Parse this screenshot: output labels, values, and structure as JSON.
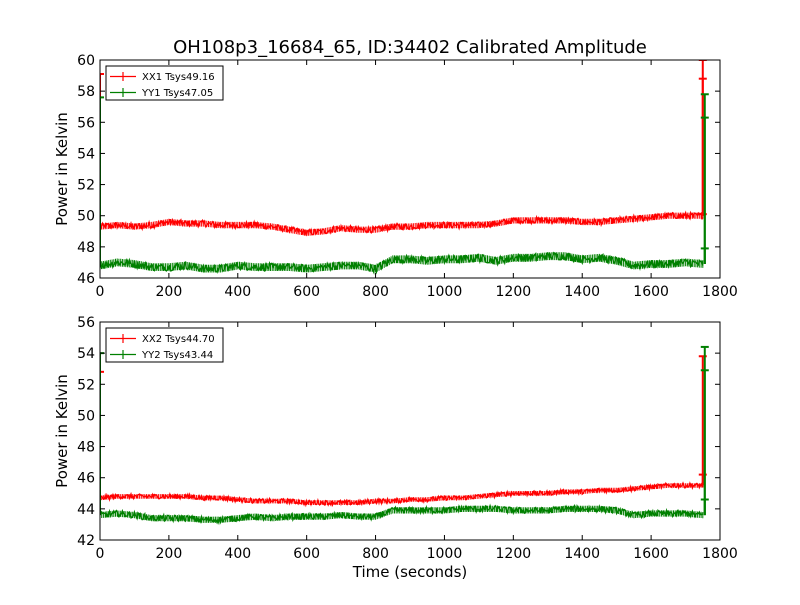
{
  "figure": {
    "title": "OH108p3_16684_65, ID:34402 Calibrated Amplitude",
    "xlabel": "Time (seconds)"
  },
  "colors": {
    "XX": "#ff0000",
    "YY": "#008000"
  },
  "chart_data": [
    {
      "type": "line",
      "title": "OH108p3_16684_65, ID:34402 Calibrated Amplitude",
      "xlabel": "",
      "ylabel": "Power in Kelvin",
      "xlim": [
        0,
        1800
      ],
      "ylim": [
        46,
        60
      ],
      "xticks": [
        0,
        200,
        400,
        600,
        800,
        1000,
        1200,
        1400,
        1600,
        1800
      ],
      "yticks": [
        46,
        48,
        50,
        52,
        54,
        56,
        58,
        60
      ],
      "grid": false,
      "legend_position": "top-left",
      "series": [
        {
          "name": "XX1 Tsys49.16",
          "color": "#ff0000",
          "x": [
            0,
            50,
            100,
            150,
            200,
            250,
            300,
            350,
            400,
            450,
            500,
            550,
            600,
            650,
            700,
            750,
            800,
            850,
            900,
            950,
            1000,
            1050,
            1100,
            1150,
            1200,
            1250,
            1300,
            1350,
            1400,
            1450,
            1500,
            1550,
            1600,
            1650,
            1700,
            1750
          ],
          "y": [
            49.3,
            49.4,
            49.3,
            49.4,
            49.6,
            49.5,
            49.5,
            49.4,
            49.4,
            49.4,
            49.3,
            49.1,
            48.9,
            49.0,
            49.2,
            49.1,
            49.1,
            49.3,
            49.3,
            49.4,
            49.4,
            49.4,
            49.4,
            49.5,
            49.7,
            49.7,
            49.7,
            49.7,
            49.6,
            49.6,
            49.7,
            49.8,
            49.9,
            50.0,
            50.0,
            50.0
          ],
          "noise": 0.2,
          "edge_points": [
            {
              "x": 0,
              "y": 59.1
            },
            {
              "x": 1750,
              "y": 60.0
            },
            {
              "x": 1750,
              "y": 58.8
            },
            {
              "x": 1750,
              "y": 50.1
            }
          ]
        },
        {
          "name": "YY1 Tsys47.05",
          "color": "#008000",
          "x": [
            0,
            50,
            100,
            150,
            200,
            250,
            300,
            350,
            400,
            450,
            500,
            550,
            600,
            650,
            700,
            750,
            800,
            850,
            900,
            950,
            1000,
            1050,
            1100,
            1150,
            1200,
            1250,
            1300,
            1350,
            1400,
            1450,
            1500,
            1550,
            1600,
            1650,
            1700,
            1750
          ],
          "y": [
            46.8,
            47.0,
            46.9,
            46.7,
            46.7,
            46.8,
            46.6,
            46.6,
            46.8,
            46.7,
            46.7,
            46.7,
            46.6,
            46.7,
            46.8,
            46.8,
            46.6,
            47.2,
            47.2,
            47.1,
            47.2,
            47.2,
            47.3,
            47.1,
            47.3,
            47.3,
            47.4,
            47.4,
            47.2,
            47.3,
            47.1,
            46.8,
            46.9,
            46.9,
            47.0,
            46.9
          ],
          "noise": 0.25,
          "edge_points": [
            {
              "x": 0,
              "y": 57.6
            },
            {
              "x": 1750,
              "y": 57.8
            },
            {
              "x": 1750,
              "y": 56.3
            },
            {
              "x": 1750,
              "y": 47.9
            }
          ]
        }
      ]
    },
    {
      "type": "line",
      "title": "",
      "xlabel": "Time (seconds)",
      "ylabel": "Power in Kelvin",
      "xlim": [
        0,
        1800
      ],
      "ylim": [
        42,
        56
      ],
      "xticks": [
        0,
        200,
        400,
        600,
        800,
        1000,
        1200,
        1400,
        1600,
        1800
      ],
      "yticks": [
        42,
        44,
        46,
        48,
        50,
        52,
        54,
        56
      ],
      "grid": false,
      "legend_position": "top-left",
      "series": [
        {
          "name": "XX2 Tsys44.70",
          "color": "#ff0000",
          "x": [
            0,
            50,
            100,
            150,
            200,
            250,
            300,
            350,
            400,
            450,
            500,
            550,
            600,
            650,
            700,
            750,
            800,
            850,
            900,
            950,
            1000,
            1050,
            1100,
            1150,
            1200,
            1250,
            1300,
            1350,
            1400,
            1450,
            1500,
            1550,
            1600,
            1650,
            1700,
            1750
          ],
          "y": [
            44.7,
            44.8,
            44.8,
            44.8,
            44.8,
            44.8,
            44.7,
            44.7,
            44.6,
            44.5,
            44.5,
            44.5,
            44.4,
            44.4,
            44.4,
            44.4,
            44.5,
            44.5,
            44.6,
            44.6,
            44.7,
            44.7,
            44.8,
            44.9,
            45.0,
            45.0,
            45.0,
            45.1,
            45.1,
            45.2,
            45.2,
            45.3,
            45.4,
            45.5,
            45.5,
            45.5
          ],
          "noise": 0.15,
          "edge_points": [
            {
              "x": 0,
              "y": 52.8
            },
            {
              "x": 1750,
              "y": 53.8
            },
            {
              "x": 1750,
              "y": 46.2
            }
          ]
        },
        {
          "name": "YY2 Tsys43.44",
          "color": "#008000",
          "x": [
            0,
            50,
            100,
            150,
            200,
            250,
            300,
            350,
            400,
            450,
            500,
            550,
            600,
            650,
            700,
            750,
            800,
            850,
            900,
            950,
            1000,
            1050,
            1100,
            1150,
            1200,
            1250,
            1300,
            1350,
            1400,
            1450,
            1500,
            1550,
            1600,
            1650,
            1700,
            1750
          ],
          "y": [
            43.6,
            43.7,
            43.6,
            43.4,
            43.4,
            43.4,
            43.3,
            43.3,
            43.4,
            43.5,
            43.4,
            43.5,
            43.5,
            43.5,
            43.6,
            43.5,
            43.5,
            43.9,
            43.9,
            43.9,
            43.9,
            44.0,
            44.0,
            44.0,
            43.9,
            43.9,
            43.9,
            44.0,
            44.0,
            44.0,
            43.9,
            43.6,
            43.7,
            43.7,
            43.7,
            43.6
          ],
          "noise": 0.2,
          "edge_points": [
            {
              "x": 0,
              "y": 54.0
            },
            {
              "x": 1750,
              "y": 54.4
            },
            {
              "x": 1750,
              "y": 52.9
            },
            {
              "x": 1750,
              "y": 44.6
            }
          ]
        }
      ]
    }
  ]
}
